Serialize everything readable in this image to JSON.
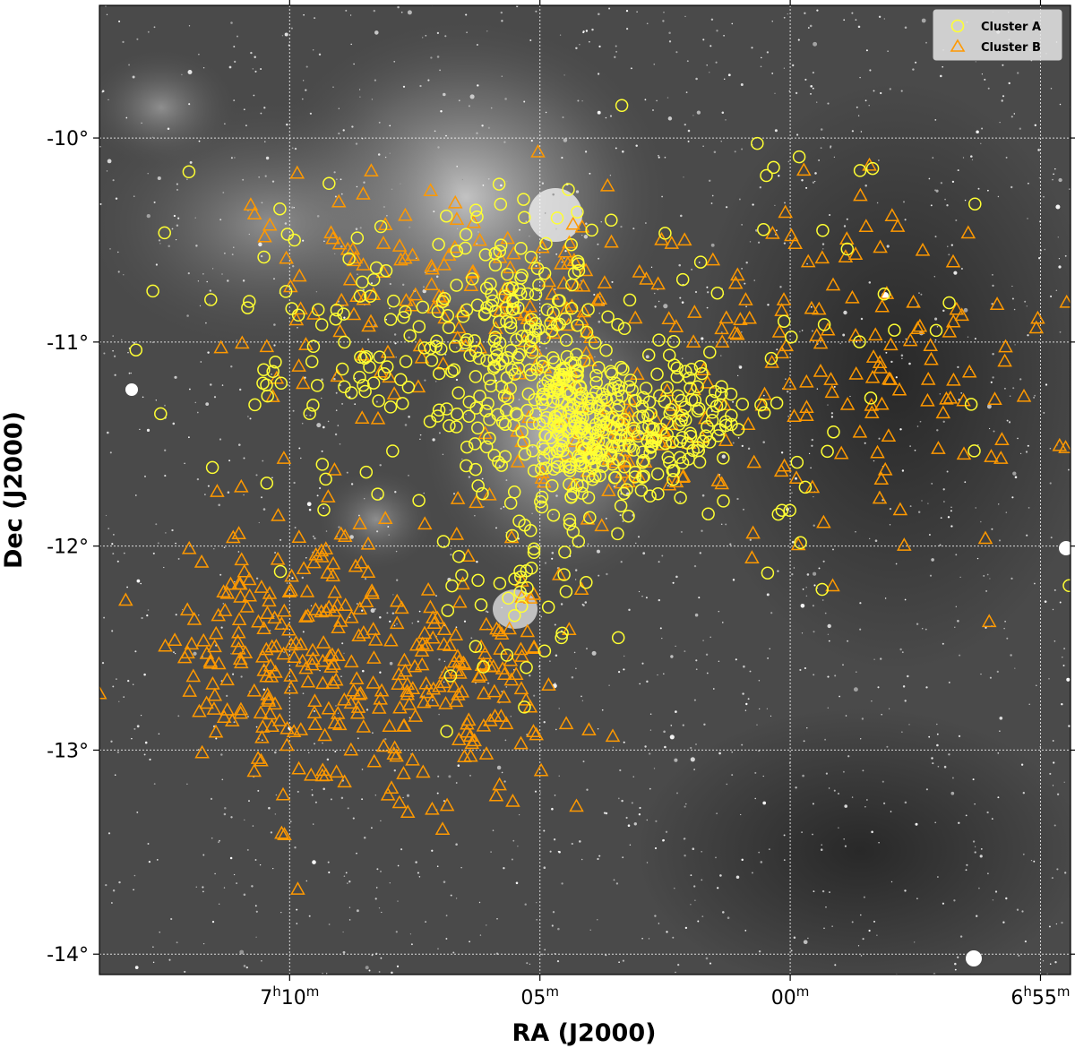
{
  "chart_data": {
    "type": "scatter",
    "xlabel": "RA (J2000)",
    "ylabel": "Dec (J2000)",
    "x_ticks": [
      {
        "ra_min": 10,
        "h": "7",
        "m": "10"
      },
      {
        "ra_min": 5,
        "h": "",
        "m": "05"
      },
      {
        "ra_min": 0,
        "h": "",
        "m": "00"
      },
      {
        "ra_min": -5,
        "h": "6",
        "m": "55"
      }
    ],
    "y_ticks": [
      {
        "value": -10,
        "label": "-10°"
      },
      {
        "value": -11,
        "label": "-11°"
      },
      {
        "value": -12,
        "label": "-12°"
      },
      {
        "value": -13,
        "label": "-13°"
      },
      {
        "value": -14,
        "label": "-14°"
      }
    ],
    "xlim_ra_min": [
      13.8,
      -5.6
    ],
    "ylim_dec_deg": [
      -14.1,
      -9.35
    ],
    "grid": true,
    "background": "grayscale sky image with nebulosity",
    "legend_position": "top-right",
    "series": [
      {
        "name": "Cluster A",
        "marker": "circle",
        "color": "#ffff33"
      },
      {
        "name": "Cluster B",
        "marker": "triangle",
        "color": "#ff9900"
      }
    ],
    "clumps": [
      {
        "series": "Cluster A",
        "ra_min": 4.0,
        "dec": -11.45,
        "spread_ra": 1.6,
        "spread_dec": 0.35,
        "count": 260
      },
      {
        "series": "Cluster A",
        "ra_min": 5.4,
        "dec": -11.0,
        "spread_ra": 2.6,
        "spread_dec": 0.55,
        "count": 190
      },
      {
        "series": "Cluster A",
        "ra_min": 2.2,
        "dec": -11.35,
        "spread_ra": 1.4,
        "spread_dec": 0.25,
        "count": 70
      },
      {
        "series": "Cluster A",
        "ra_min": 8.5,
        "dec": -11.1,
        "spread_ra": 3.5,
        "spread_dec": 0.6,
        "count": 90
      },
      {
        "series": "Cluster A",
        "ra_min": 5.5,
        "dec": -12.25,
        "spread_ra": 1.5,
        "spread_dec": 0.35,
        "count": 40
      },
      {
        "series": "Cluster A",
        "ra_min": 1.0,
        "dec": -11.2,
        "spread_ra": 6.0,
        "spread_dec": 1.0,
        "count": 70
      },
      {
        "series": "Cluster B",
        "ra_min": 9.5,
        "dec": -12.55,
        "spread_ra": 3.0,
        "spread_dec": 0.6,
        "count": 250
      },
      {
        "series": "Cluster B",
        "ra_min": 6.3,
        "dec": -12.7,
        "spread_ra": 1.5,
        "spread_dec": 0.45,
        "count": 90
      },
      {
        "series": "Cluster B",
        "ra_min": 5.4,
        "dec": -10.8,
        "spread_ra": 2.2,
        "spread_dec": 0.5,
        "count": 70
      },
      {
        "series": "Cluster B",
        "ra_min": 8.2,
        "dec": -10.7,
        "spread_ra": 2.8,
        "spread_dec": 0.5,
        "count": 70
      },
      {
        "series": "Cluster B",
        "ra_min": 3.5,
        "dec": -11.5,
        "spread_ra": 1.8,
        "spread_dec": 0.4,
        "count": 60
      },
      {
        "series": "Cluster B",
        "ra_min": -1.5,
        "dec": -11.2,
        "spread_ra": 3.5,
        "spread_dec": 0.8,
        "count": 110
      },
      {
        "series": "Cluster B",
        "ra_min": 1.5,
        "dec": -10.8,
        "spread_ra": 2.5,
        "spread_dec": 0.6,
        "count": 40
      }
    ]
  }
}
